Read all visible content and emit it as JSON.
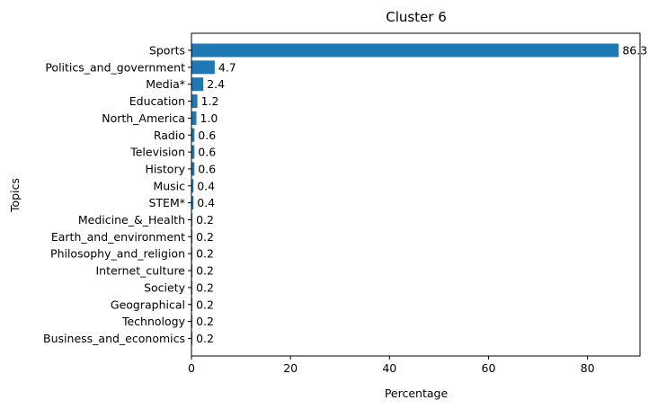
{
  "chart_data": {
    "type": "bar",
    "orientation": "horizontal",
    "title": "Cluster 6",
    "xlabel": "Percentage",
    "ylabel": "Topics",
    "xlim": [
      0,
      90.6
    ],
    "xticks": [
      0,
      20,
      40,
      60,
      80
    ],
    "grid": false,
    "bar_color": "#1f77b4",
    "categories": [
      "Sports",
      "Politics_and_government",
      "Media*",
      "Education",
      "North_America",
      "Radio",
      "Television",
      "History",
      "Music",
      "STEM*",
      "Medicine_&_Health",
      "Earth_and_environment",
      "Philosophy_and_religion",
      "Internet_culture",
      "Society",
      "Geographical",
      "Technology",
      "Business_and_economics"
    ],
    "values": [
      86.3,
      4.7,
      2.4,
      1.2,
      1.0,
      0.6,
      0.6,
      0.6,
      0.4,
      0.4,
      0.2,
      0.2,
      0.2,
      0.2,
      0.2,
      0.2,
      0.2,
      0.2
    ],
    "value_labels": [
      "86.3",
      "4.7",
      "2.4",
      "1.2",
      "1.0",
      "0.6",
      "0.6",
      "0.6",
      "0.4",
      "0.4",
      "0.2",
      "0.2",
      "0.2",
      "0.2",
      "0.2",
      "0.2",
      "0.2",
      "0.2"
    ]
  }
}
